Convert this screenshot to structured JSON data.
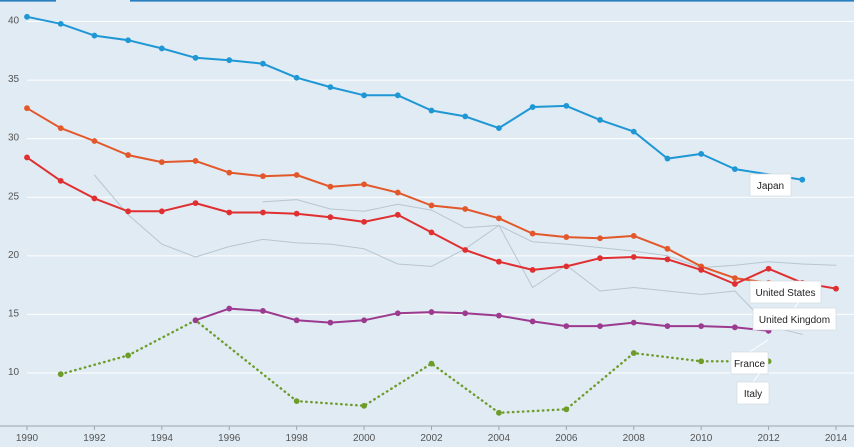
{
  "chart_data": {
    "type": "line",
    "title": "",
    "xlabel": "",
    "ylabel": "",
    "x_ticks": [
      "1990",
      "1992",
      "1994",
      "1996",
      "1998",
      "2000",
      "2002",
      "2004",
      "2006",
      "2008",
      "2010",
      "2012",
      "2014"
    ],
    "y_ticks": [
      "10",
      "15",
      "20",
      "25",
      "30",
      "35",
      "40"
    ],
    "xlim": [
      1990,
      2014
    ],
    "ylim": [
      6.5,
      42
    ],
    "grid": "horizontal",
    "series": [
      {
        "name": "Japan",
        "color": "#1f97d5",
        "style": "solid-markers",
        "x": [
          1990,
          1991,
          1992,
          1993,
          1994,
          1995,
          1996,
          1997,
          1998,
          1999,
          2000,
          2001,
          2002,
          2003,
          2004,
          2005,
          2006,
          2007,
          2008,
          2009,
          2010,
          2011,
          2013
        ],
        "y": [
          40.4,
          39.8,
          38.8,
          38.4,
          37.7,
          36.9,
          36.7,
          36.4,
          35.2,
          34.4,
          33.7,
          33.7,
          32.4,
          31.9,
          30.9,
          32.7,
          32.8,
          31.6,
          30.6,
          28.3,
          28.7,
          27.4,
          26.5
        ]
      },
      {
        "name": "",
        "color": "#e2582a",
        "style": "solid-markers",
        "x": [
          1990,
          1991,
          1992,
          1993,
          1994,
          1995,
          1996,
          1997,
          1998,
          1999,
          2000,
          2001,
          2002,
          2003,
          2004,
          2005,
          2006,
          2007,
          2008,
          2009,
          2010,
          2011,
          2012,
          2013
        ],
        "y": [
          32.6,
          30.9,
          29.8,
          28.6,
          28.0,
          28.1,
          27.1,
          26.8,
          26.9,
          25.9,
          26.1,
          25.4,
          24.3,
          24.0,
          23.2,
          21.9,
          21.6,
          21.5,
          21.7,
          20.6,
          19.1,
          18.1,
          17.7,
          17.5
        ]
      },
      {
        "name": "United States",
        "color": "#e02f31",
        "style": "solid-markers",
        "x": [
          1990,
          1991,
          1992,
          1993,
          1994,
          1995,
          1996,
          1997,
          1998,
          1999,
          2000,
          2001,
          2002,
          2003,
          2004,
          2005,
          2006,
          2007,
          2008,
          2009,
          2010,
          2011,
          2012,
          2013,
          2014
        ],
        "y": [
          28.4,
          26.4,
          24.9,
          23.8,
          23.8,
          24.5,
          23.7,
          23.7,
          23.6,
          23.3,
          22.9,
          23.5,
          22.0,
          20.5,
          19.5,
          18.8,
          19.1,
          19.8,
          19.9,
          19.7,
          18.8,
          17.6,
          18.9,
          17.7,
          17.2
        ]
      },
      {
        "name": "United Kingdom",
        "color": "#b9c6cf",
        "style": "plain",
        "x": [
          1997,
          1998,
          1999,
          2000,
          2001,
          2002,
          2003,
          2004,
          2005,
          2006,
          2007,
          2008,
          2009,
          2010,
          2011,
          2012,
          2013,
          2014
        ],
        "y": [
          24.6,
          24.8,
          24.0,
          23.8,
          24.4,
          23.9,
          22.4,
          22.6,
          21.2,
          21.0,
          20.7,
          20.4,
          20.0,
          19.0,
          19.2,
          19.5,
          19.3,
          19.2
        ]
      },
      {
        "name": "",
        "color": "#b9c6cf",
        "style": "plain",
        "x": [
          1992,
          1993,
          1994,
          1995,
          1996,
          1997,
          1998,
          1999,
          2000,
          2001,
          2002,
          2003,
          2004,
          2005,
          2006,
          2007,
          2008,
          2009,
          2010,
          2011,
          2012,
          2013
        ],
        "y": [
          26.9,
          23.5,
          21.0,
          19.9,
          20.8,
          21.4,
          21.1,
          21.0,
          20.6,
          19.3,
          19.1,
          20.6,
          22.6,
          17.3,
          19.2,
          17.0,
          17.3,
          17.0,
          16.7,
          17.0,
          14.0,
          13.3
        ]
      },
      {
        "name": "France",
        "color": "#9c3a8f",
        "style": "solid-markers",
        "x": [
          1995,
          1996,
          1997,
          1998,
          1999,
          2000,
          2001,
          2002,
          2003,
          2004,
          2005,
          2006,
          2007,
          2008,
          2009,
          2010,
          2011,
          2012
        ],
        "y": [
          14.5,
          15.5,
          15.3,
          14.5,
          14.3,
          14.5,
          15.1,
          15.2,
          15.1,
          14.9,
          14.4,
          14.0,
          14.0,
          14.3,
          14.0,
          14.0,
          13.9,
          13.6
        ]
      },
      {
        "name": "Italy",
        "color": "#6e9c2a",
        "style": "dotted-markers",
        "x": [
          1991,
          1993,
          1995,
          1998,
          2000,
          2002,
          2004,
          2006,
          2008,
          2010,
          2012
        ],
        "y": [
          9.9,
          11.5,
          14.5,
          7.6,
          7.2,
          10.8,
          6.6,
          6.9,
          11.7,
          11.0,
          11.0
        ]
      }
    ],
    "annotations": [
      {
        "text": "Japan",
        "series": 0
      },
      {
        "text": "United States",
        "series": 2
      },
      {
        "text": "United Kingdom",
        "series": 3
      },
      {
        "text": "France",
        "series": 5
      },
      {
        "text": "Italy",
        "series": 6
      }
    ]
  }
}
